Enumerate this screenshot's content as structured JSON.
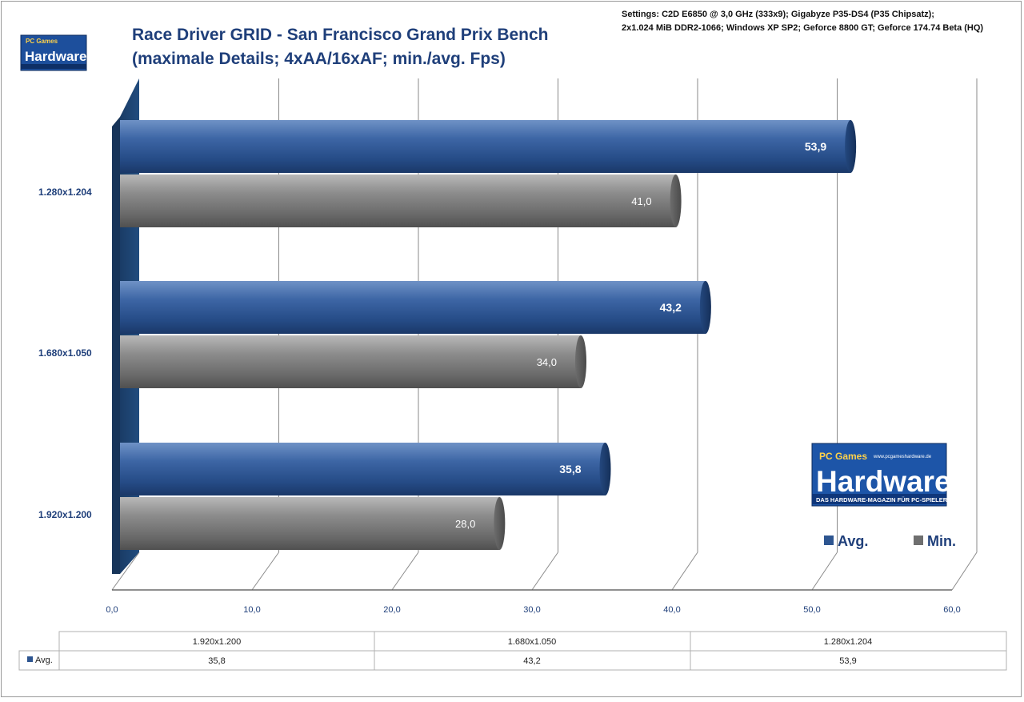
{
  "chart_data": {
    "type": "bar",
    "orientation": "horizontal",
    "title_line1": "Race Driver GRID - San Francisco Grand Prix Bench",
    "title_line2": "(maximale Details; 4xAA/16xAF; min./avg. Fps)",
    "settings_line1": "Settings: C2D E6850 @ 3,0 GHz (333x9); Gigabyze  P35-DS4 (P35 Chipsatz);",
    "settings_line2": "2x1.024 MiB DDR2-1066;  Windows XP SP2; Geforce 8800 GT; Geforce 174.74 Beta (HQ)",
    "categories": [
      "1.280x1.204",
      "1.680x1.050",
      "1.920x1.200"
    ],
    "series": [
      {
        "name": "Avg.",
        "color": "#2d5590",
        "values": [
          53.9,
          43.2,
          35.8
        ],
        "labels": [
          "53,9",
          "43,2",
          "35,8"
        ]
      },
      {
        "name": "Min.",
        "color": "#6f6f6f",
        "values": [
          41.0,
          34.0,
          28.0
        ],
        "labels": [
          "41,0",
          "34,0",
          "28,0"
        ]
      }
    ],
    "xlim": [
      0,
      60
    ],
    "xticks": [
      "0,0",
      "10,0",
      "20,0",
      "30,0",
      "40,0",
      "50,0",
      "60,0"
    ],
    "grid": true,
    "legend_position": "bottom-right",
    "data_table": {
      "headers": [
        "1.920x1.200",
        "1.680x1.050",
        "1.280x1.204"
      ],
      "row_label": "Avg.",
      "row_values": [
        "35,8",
        "43,2",
        "53,9"
      ]
    }
  },
  "logo": {
    "top": "PC Games",
    "main": "Hardware",
    "tagline": "DAS HARDWARE-MAGAZIN FÜR PC-SPIELER",
    "url": "www.pcgameshardware.de"
  }
}
